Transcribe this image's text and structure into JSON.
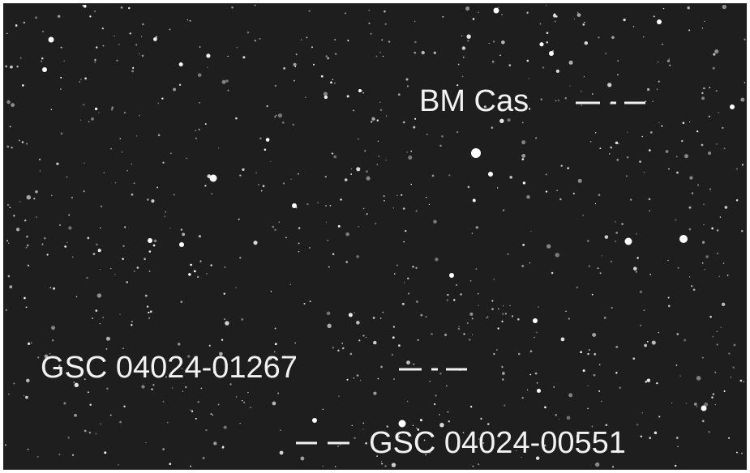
{
  "labels": [
    "BM Cas",
    "GSC 04024-01267",
    "GSC 04024-00551"
  ]
}
